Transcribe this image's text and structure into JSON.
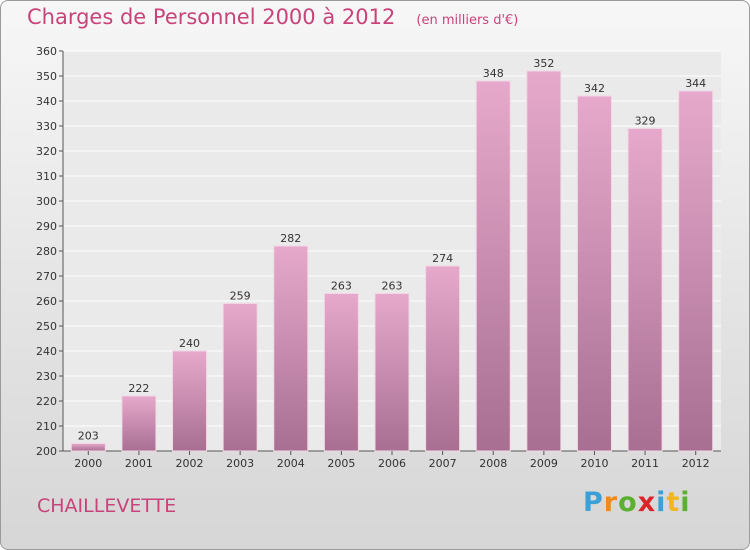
{
  "header": {
    "title": "Charges de Personnel 2000 à 2012",
    "subtitle": "(en milliers d'€)"
  },
  "footer": {
    "commune": "CHAILLEVETTE",
    "logo_text": "Proxiti"
  },
  "colors": {
    "accent": "#c8437a",
    "bar_light": "#e6a9cc",
    "bar_dark": "#a86f92"
  },
  "chart_data": {
    "type": "bar",
    "title": "Charges de Personnel 2000 à 2012",
    "subtitle": "(en milliers d'€)",
    "categories": [
      "2000",
      "2001",
      "2002",
      "2003",
      "2004",
      "2005",
      "2006",
      "2007",
      "2008",
      "2009",
      "2010",
      "2011",
      "2012"
    ],
    "values": [
      203,
      222,
      240,
      259,
      282,
      263,
      263,
      274,
      348,
      352,
      342,
      329,
      344
    ],
    "ylim": [
      200,
      360
    ],
    "yticks": [
      200,
      210,
      220,
      230,
      240,
      250,
      260,
      270,
      280,
      290,
      300,
      310,
      320,
      330,
      340,
      350,
      360
    ],
    "grid": true,
    "legend": "none"
  }
}
